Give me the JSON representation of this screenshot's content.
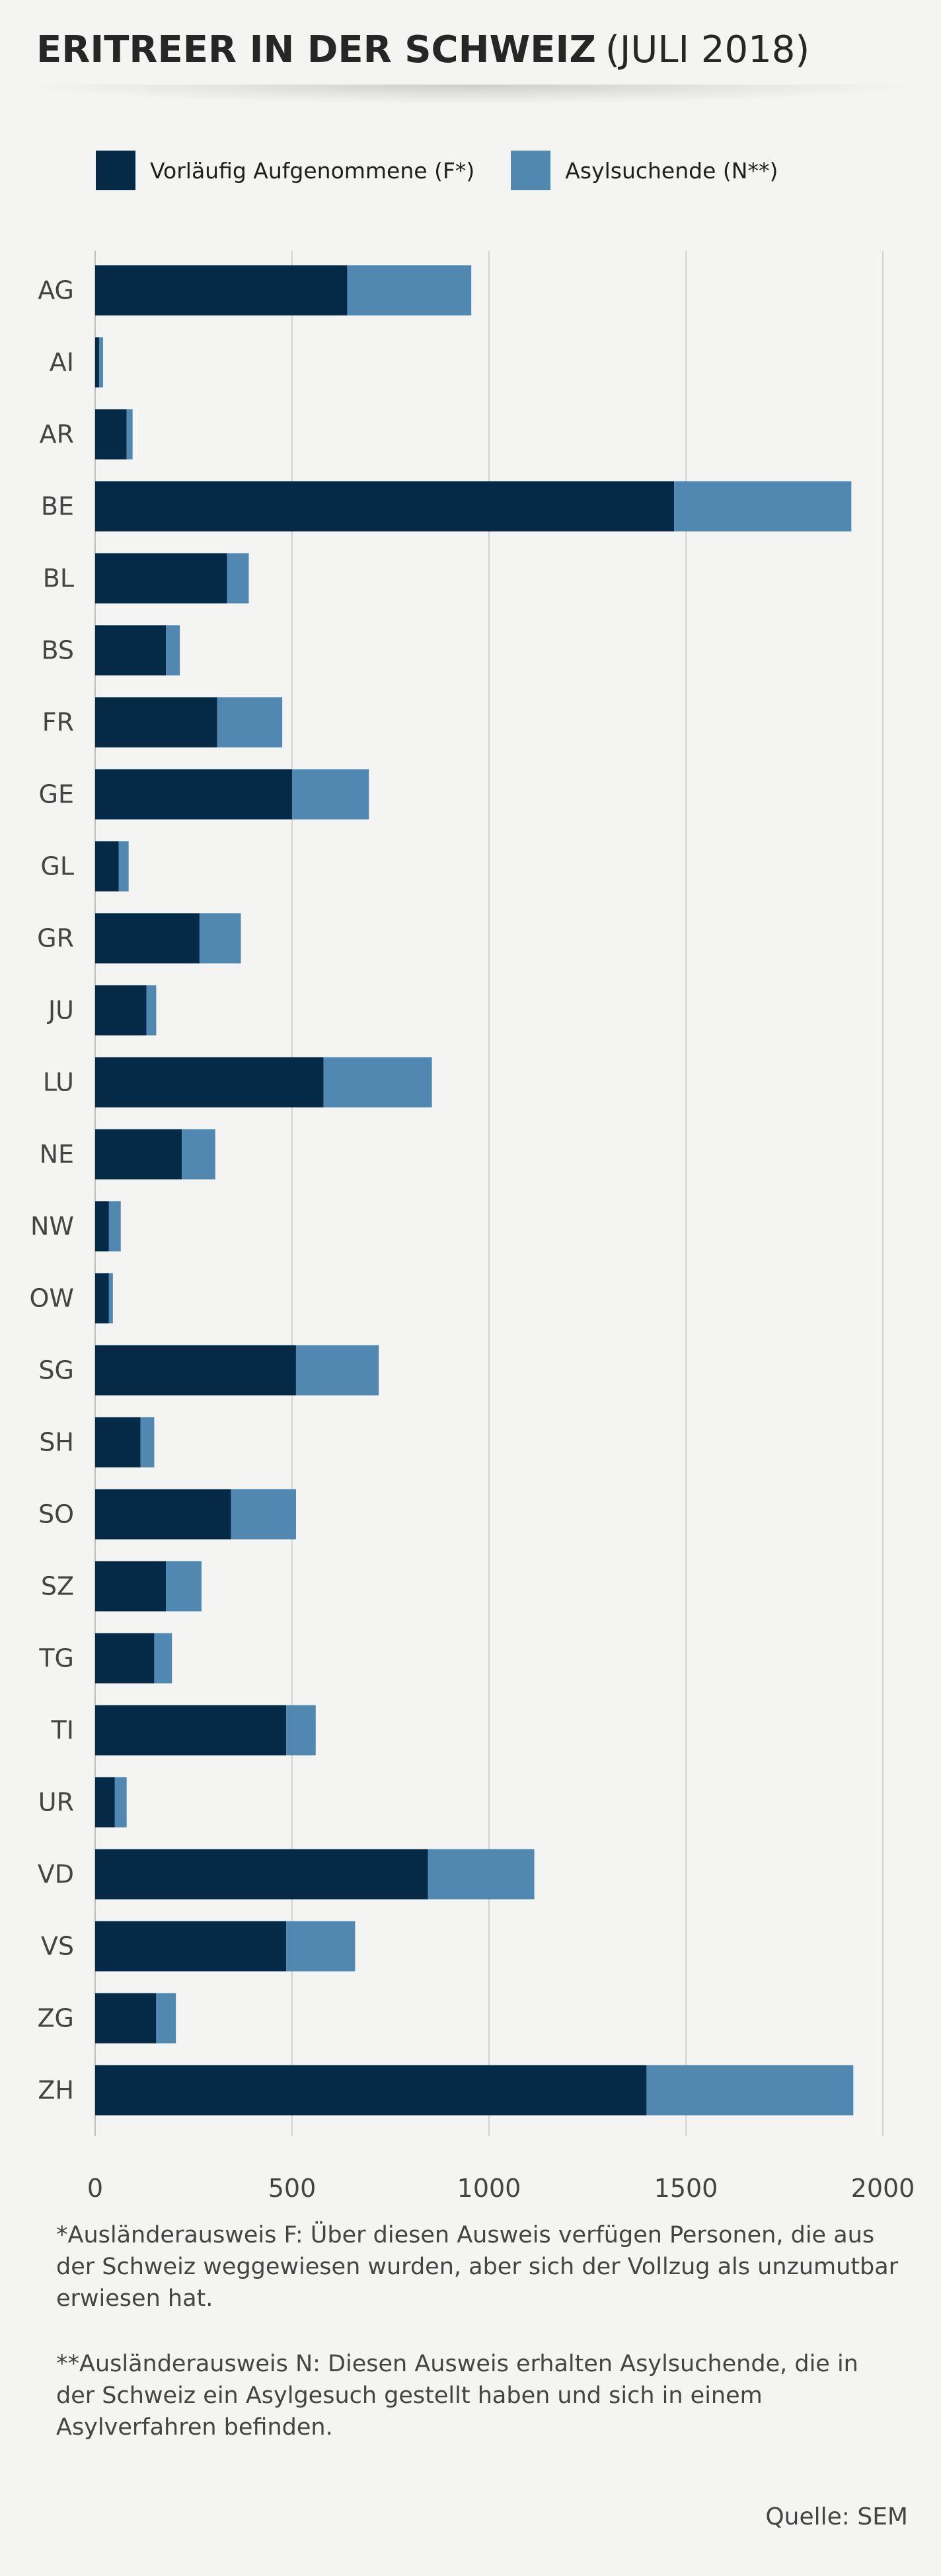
{
  "header": {
    "title_main": "ERITREER IN DER SCHWEIZ",
    "title_sub": "(JULI 2018)"
  },
  "legend": [
    {
      "label": "Vorläufig Aufgenommene (F*)",
      "color": "#052a48"
    },
    {
      "label": "Asylsuchende (N**)",
      "color": "#5188b2"
    }
  ],
  "chart_data": {
    "type": "bar",
    "orientation": "horizontal",
    "stacked": true,
    "categories": [
      "AG",
      "AI",
      "AR",
      "BE",
      "BL",
      "BS",
      "FR",
      "GE",
      "GL",
      "GR",
      "JU",
      "LU",
      "NE",
      "NW",
      "OW",
      "SG",
      "SH",
      "SO",
      "SZ",
      "TG",
      "TI",
      "UR",
      "VD",
      "VS",
      "ZG",
      "ZH"
    ],
    "series": [
      {
        "name": "Vorläufig Aufgenommene (F*)",
        "color": "#052a48",
        "values": [
          640,
          10,
          80,
          1470,
          335,
          180,
          310,
          500,
          60,
          265,
          130,
          580,
          220,
          35,
          35,
          510,
          115,
          345,
          180,
          150,
          485,
          50,
          845,
          485,
          155,
          1400
        ]
      },
      {
        "name": "Asylsuchende (N**)",
        "color": "#5188b2",
        "values": [
          315,
          10,
          15,
          450,
          55,
          35,
          165,
          195,
          25,
          105,
          25,
          275,
          85,
          30,
          10,
          210,
          35,
          165,
          90,
          45,
          75,
          30,
          270,
          175,
          50,
          525
        ]
      }
    ],
    "xlim": [
      0,
      2000
    ],
    "xticks": [
      "0",
      "500",
      "1000",
      "1500",
      "2000"
    ],
    "grid": true,
    "legend_position": "top-left"
  },
  "footnotes": [
    "*Ausländerausweis F: Über diesen Ausweis verfügen Personen, die aus der Schweiz weggewiesen wurden, aber sich der Vollzug als unzumutbar erwiesen hat.",
    "**Ausländerausweis N: Diesen Ausweis erhalten Asylsuchende, die in der Schweiz ein Asylgesuch gestellt haben und sich in einem Asylverfahren befinden."
  ],
  "source": "Quelle: SEM"
}
